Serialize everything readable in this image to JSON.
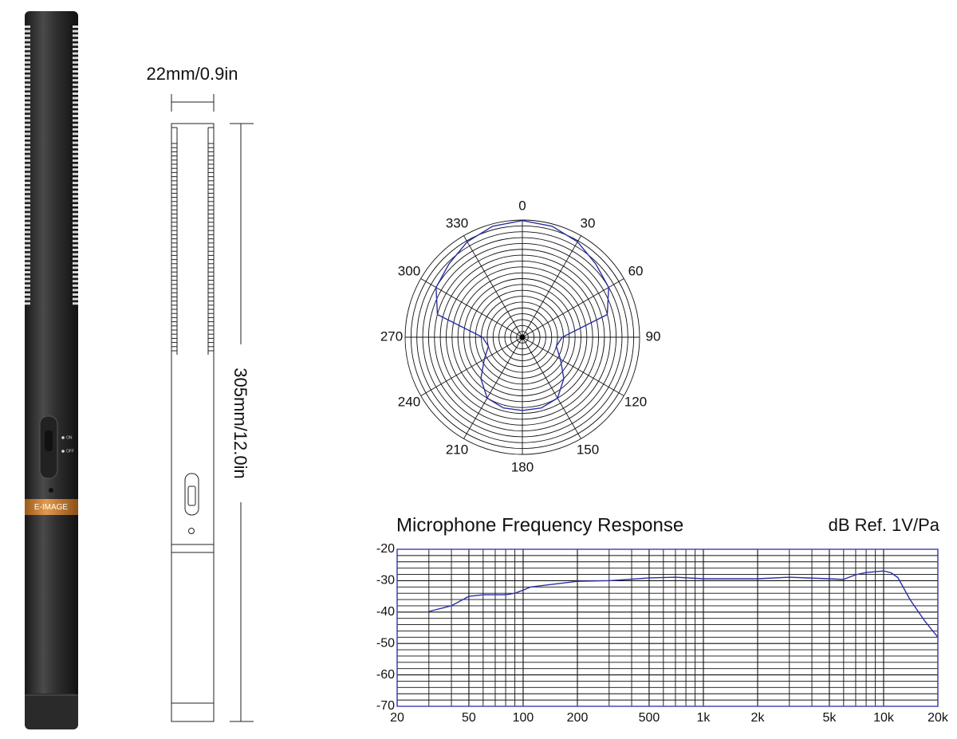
{
  "product": {
    "brand": "E-IMAGE",
    "switch_on": "ON",
    "switch_off": "OFF"
  },
  "dimensions": {
    "width_label": "22mm/0.9in",
    "length_label": "305mm/12.0in"
  },
  "chart_data": [
    {
      "type": "polar",
      "angle_ticks": [
        0,
        30,
        60,
        90,
        120,
        150,
        180,
        210,
        240,
        270,
        300,
        330
      ],
      "rlim": [
        0,
        20
      ],
      "rticks": [
        1,
        2,
        3,
        4,
        5,
        6,
        7,
        8,
        9,
        10,
        11,
        12,
        13,
        14,
        15,
        16,
        17,
        18,
        19,
        20
      ],
      "series": [
        {
          "color": "#2a2fa8",
          "theta": [
            0,
            15,
            30,
            45,
            60,
            75,
            90,
            105,
            120,
            135,
            150,
            165,
            180,
            195,
            210,
            225,
            240,
            255,
            270,
            285,
            300,
            315,
            330,
            345
          ],
          "r": [
            19.9,
            19.6,
            18.8,
            17.7,
            17.0,
            15.0,
            6.8,
            6.0,
            7.5,
            10.0,
            12.0,
            12.5,
            12.5,
            12.5,
            12.0,
            10.0,
            7.5,
            6.0,
            6.8,
            15.0,
            17.0,
            17.7,
            18.8,
            19.6
          ]
        }
      ]
    },
    {
      "type": "line",
      "title": "Microphone Frequency Response",
      "subtitle": "dB Ref.  1V/Pa",
      "log_x": true,
      "xlim": [
        20,
        20000
      ],
      "ylim": [
        -70,
        -20
      ],
      "xticks": [
        20,
        50,
        100,
        200,
        500,
        {
          "value": 1000,
          "label": "1k"
        },
        {
          "value": 2000,
          "label": "2k"
        },
        {
          "value": 5000,
          "label": "5k"
        },
        {
          "value": 10000,
          "label": "10k"
        },
        {
          "value": 20000,
          "label": "20k"
        }
      ],
      "yticks": [
        -70,
        -60,
        -50,
        -40,
        -30,
        -20
      ],
      "x_minor_ticks": [
        30,
        40,
        60,
        70,
        80,
        90,
        300,
        400,
        600,
        700,
        800,
        900,
        3000,
        4000,
        6000,
        7000,
        8000,
        9000
      ],
      "y_minor_ticks": [
        -68,
        -66,
        -64,
        -62,
        -58,
        -56,
        -54,
        -52,
        -48,
        -46,
        -44,
        -42,
        -38,
        -36,
        -34,
        -32,
        -28,
        -26,
        -24,
        -22
      ],
      "grid": true,
      "frame_color": "#3a3fb0",
      "series": [
        {
          "color": "#2a2fa8",
          "x": [
            30,
            40,
            50,
            60,
            70,
            80,
            90,
            100,
            110,
            200,
            300,
            500,
            700,
            1000,
            2000,
            3000,
            5000,
            6000,
            7000,
            8000,
            10000,
            11000,
            12000,
            14000,
            17000,
            20000
          ],
          "values": [
            -39.8,
            -38,
            -35,
            -34.5,
            -34.5,
            -34.5,
            -34,
            -33,
            -32,
            -30.2,
            -30,
            -29.1,
            -28.9,
            -29.4,
            -29.4,
            -28.9,
            -29.4,
            -29.6,
            -28.1,
            -27.4,
            -26.9,
            -27.5,
            -29,
            -36,
            -43,
            -48
          ]
        }
      ]
    }
  ]
}
